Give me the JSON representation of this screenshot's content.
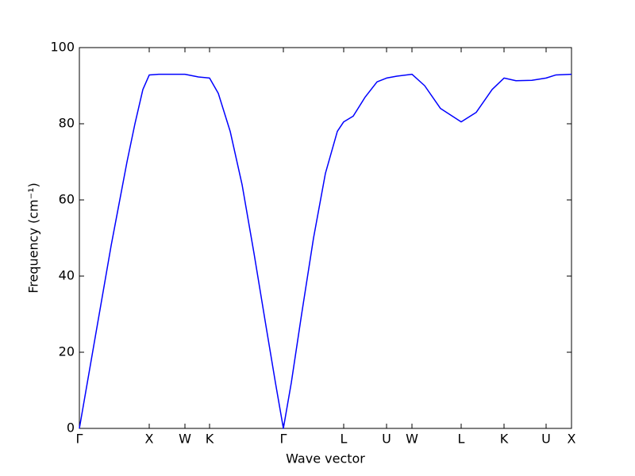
{
  "chart_data": {
    "type": "line",
    "xlabel": "Wave vector",
    "ylabel": "Frequency (cm⁻¹)",
    "x": [
      0,
      0.1,
      0.2,
      0.3,
      0.4,
      0.5,
      0.6,
      0.7,
      0.8,
      0.88,
      1.0,
      1.33,
      1.5,
      1.64,
      1.75,
      1.9,
      2.05,
      2.2,
      2.35,
      2.47,
      2.57,
      2.67,
      2.8,
      2.95,
      3.1,
      3.25,
      3.33,
      3.45,
      3.6,
      3.75,
      3.87,
      4.0,
      4.19,
      4.35,
      4.55,
      4.81,
      5.0,
      5.2,
      5.35,
      5.5,
      5.7,
      5.88,
      6.0,
      6.2
    ],
    "series": [
      {
        "color": "#0000ff",
        "values": [
          0,
          12,
          24,
          36,
          48,
          59,
          70,
          80,
          89,
          92.8,
          93,
          93,
          92.3,
          92,
          88,
          78,
          64,
          46,
          27,
          12,
          0,
          12,
          30,
          50,
          67,
          78,
          80.5,
          82,
          87,
          91,
          92,
          92.5,
          93,
          90,
          84,
          80.5,
          83,
          89,
          92,
          91.3,
          91.4,
          92,
          92.8,
          93
        ]
      }
    ],
    "xlim": [
      0,
      6.2
    ],
    "xticks": [
      {
        "value": 0,
        "label": "Γ"
      },
      {
        "value": 0.88,
        "label": "X"
      },
      {
        "value": 1.33,
        "label": "W"
      },
      {
        "value": 1.64,
        "label": "K"
      },
      {
        "value": 2.57,
        "label": "Γ"
      },
      {
        "value": 3.33,
        "label": "L"
      },
      {
        "value": 3.87,
        "label": "U"
      },
      {
        "value": 4.19,
        "label": "W"
      },
      {
        "value": 4.81,
        "label": "L"
      },
      {
        "value": 5.35,
        "label": "K"
      },
      {
        "value": 5.88,
        "label": "U"
      },
      {
        "value": 6.2,
        "label": "X"
      }
    ],
    "ylim": [
      0,
      100
    ],
    "yticks": [
      0,
      20,
      40,
      60,
      80,
      100
    ]
  }
}
